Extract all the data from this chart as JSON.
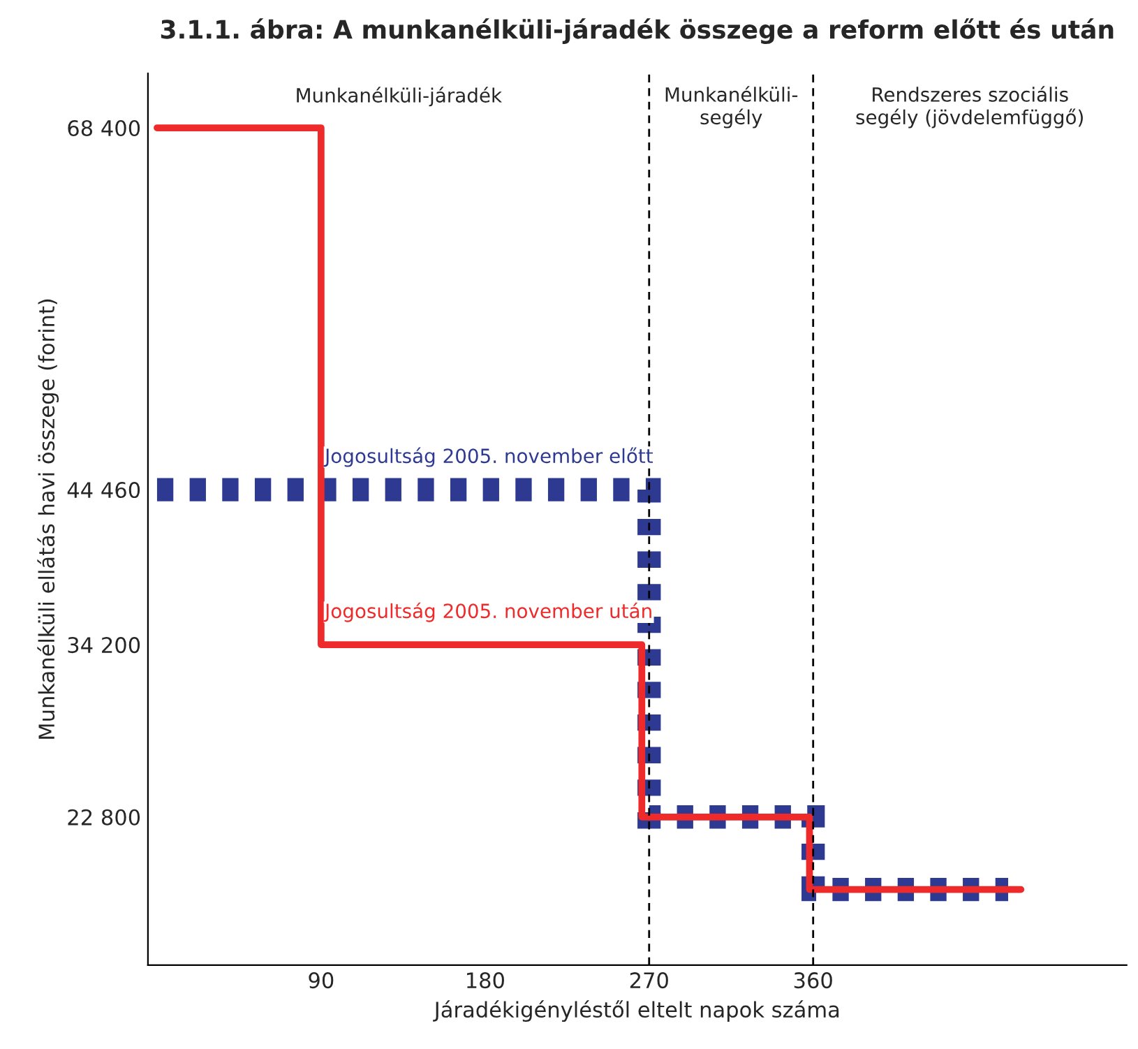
{
  "chart_data": {
    "type": "step",
    "title": "3.1.1. ábra: A munkanélküli-járadék összege a reform előtt és után",
    "xlabel": "Járadékigényléstől eltelt napok száma",
    "ylabel": "Munkanélküli ellátás havi összege (forint)",
    "series": [
      {
        "name": "Jogosultság 2005. november előtt",
        "color": "#2e3a92",
        "line_style": "dotted",
        "x": [
          0,
          270,
          360,
          467
        ],
        "values": [
          44460,
          22800,
          18000,
          18000
        ]
      },
      {
        "name": "Jogosultság 2005. november után",
        "color": "#ee2a2a",
        "line_style": "solid",
        "x": [
          0,
          90,
          266,
          358,
          474
        ],
        "values": [
          68400,
          34200,
          22800,
          18000,
          18000
        ]
      }
    ],
    "xlim": [
      -5,
      532
    ],
    "ylim": [
      13000,
      72000
    ],
    "xticks": [
      90,
      180,
      270,
      360
    ],
    "yticks": [
      {
        "value": 22800,
        "label": "22 800"
      },
      {
        "value": 34200,
        "label": "34 200"
      },
      {
        "value": 44460,
        "label": "44 460"
      },
      {
        "value": 68400,
        "label": "68 400"
      }
    ],
    "ref_lines": [
      {
        "axis": "x",
        "value": 270,
        "color": "#000000",
        "line_style": "dashed"
      },
      {
        "axis": "x",
        "value": 360,
        "color": "#000000",
        "line_style": "dashed"
      }
    ],
    "annotations": [
      "Munkanélküli-járadék",
      "Munkanélküli-\nsegély",
      "Rendszeres szociális\nsegély (jövdelemfüggő)"
    ],
    "grid": false,
    "legend": false
  }
}
